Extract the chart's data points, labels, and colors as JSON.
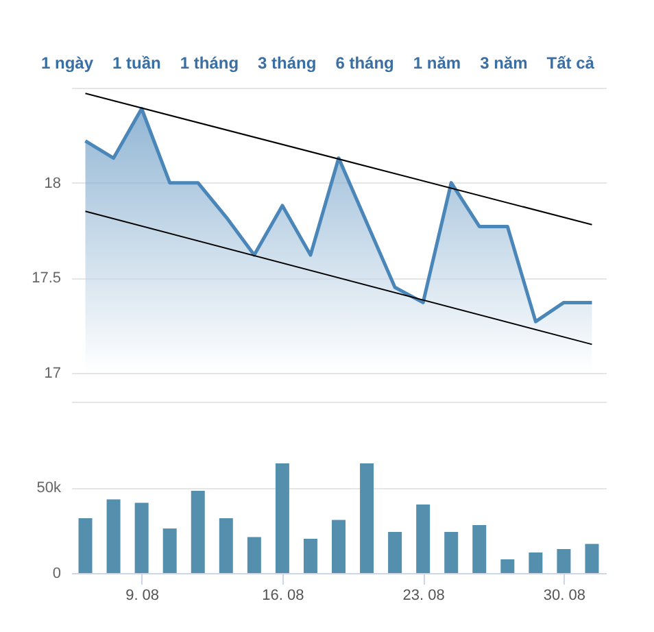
{
  "chart_data": [
    {
      "type": "area",
      "annotations": [
        "1 ngày",
        "1 tuần",
        "1 tháng",
        "3 tháng",
        "6 tháng",
        "1 năm",
        "3 năm",
        "Tất cả"
      ],
      "categories": [
        null,
        null,
        null,
        null,
        null,
        null,
        null,
        null,
        null,
        null,
        null,
        null,
        null,
        null,
        null,
        null,
        null,
        null,
        null
      ],
      "series": [
        {
          "color": "#4a86b8",
          "values": [
            18.22,
            18.13,
            18.39,
            18.0,
            18.0,
            17.82,
            17.62,
            17.88,
            17.62,
            18.13,
            17.79,
            17.45,
            17.37,
            18.0,
            17.77,
            17.77,
            17.27,
            17.37,
            17.37
          ]
        },
        {
          "type": "line",
          "color": "#000000",
          "values": [
            18.47,
            null,
            null,
            null,
            null,
            null,
            null,
            null,
            null,
            null,
            null,
            null,
            null,
            null,
            null,
            null,
            null,
            null,
            17.78
          ]
        },
        {
          "type": "line",
          "color": "#000000",
          "values": [
            17.85,
            null,
            null,
            null,
            null,
            null,
            null,
            null,
            null,
            null,
            null,
            null,
            null,
            null,
            null,
            null,
            null,
            null,
            17.15
          ]
        }
      ],
      "ylim": [
        17,
        18.5
      ],
      "yticks": [
        17,
        17.5,
        18,
        {
          "value": 18.5,
          "label": null
        }
      ],
      "grid": "y",
      "tick_labels": "y"
    },
    {
      "type": "bar",
      "categories": [
        null,
        null,
        "9. 08",
        null,
        null,
        null,
        null,
        "16. 08",
        null,
        null,
        null,
        null,
        "23. 08",
        null,
        null,
        null,
        null,
        "30. 08",
        null
      ],
      "series": [
        {
          "color": "#548fae",
          "values": [
            32000,
            43000,
            41000,
            26000,
            48000,
            32000,
            21000,
            64000,
            20000,
            31000,
            64000,
            24000,
            40000,
            24000,
            28000,
            8000,
            12000,
            14000,
            17000
          ]
        }
      ],
      "ylim": [
        0,
        100000
      ],
      "yticks": [
        0,
        {
          "value": 50000,
          "label": "50k"
        },
        {
          "value": 100000,
          "label": null
        }
      ],
      "grid": "y"
    }
  ]
}
